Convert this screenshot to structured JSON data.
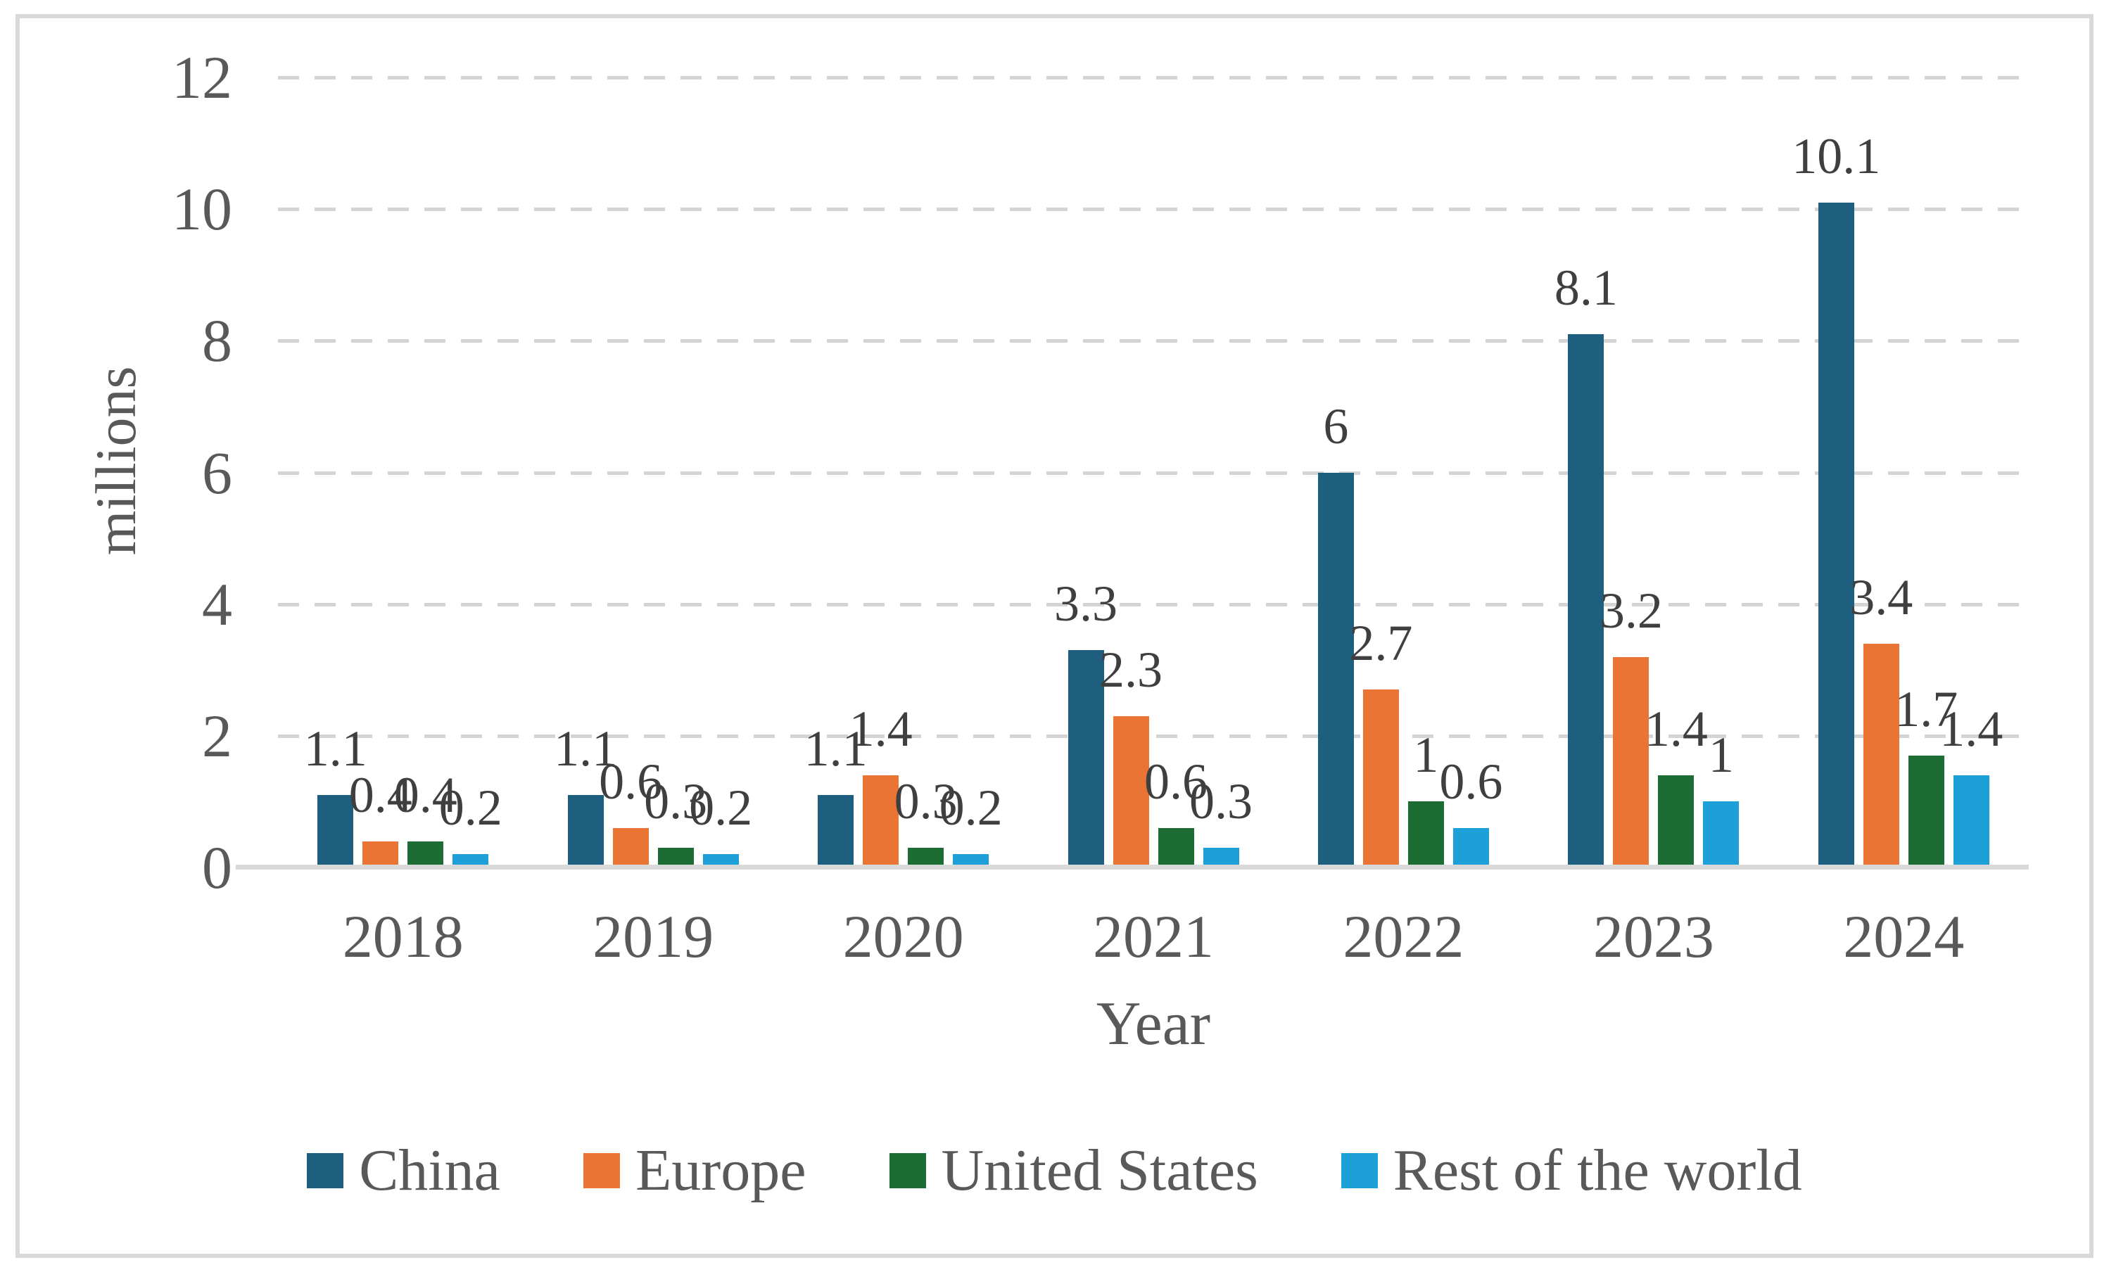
{
  "chart_data": {
    "type": "bar",
    "categories": [
      "2018",
      "2019",
      "2020",
      "2021",
      "2022",
      "2023",
      "2024"
    ],
    "series": [
      {
        "name": "China",
        "color": "#1e5f80",
        "values": [
          1.1,
          1.1,
          1.1,
          3.3,
          6,
          8.1,
          10.1
        ]
      },
      {
        "name": "Europe",
        "color": "#ea7434",
        "values": [
          0.4,
          0.6,
          1.4,
          2.3,
          2.7,
          3.2,
          3.4
        ]
      },
      {
        "name": "United States",
        "color": "#1d6c34",
        "values": [
          0.4,
          0.3,
          0.3,
          0.6,
          1,
          1.4,
          1.7
        ]
      },
      {
        "name": "Rest of the world",
        "color": "#1d9fd8",
        "values": [
          0.2,
          0.2,
          0.2,
          0.3,
          0.6,
          1,
          1.4
        ]
      }
    ],
    "title": "",
    "xlabel": "Year",
    "ylabel": "millions",
    "ylim": [
      0,
      12
    ],
    "yticks": [
      0,
      2,
      4,
      6,
      8,
      10,
      12
    ],
    "grid": "dashed horizontal",
    "legend_position": "bottom",
    "data_labels": "above bars",
    "colors": {
      "gridline": "#d4d4d4",
      "axis_line": "#d9d9d9",
      "frame_border": "#d9d9d9",
      "tick_text": "#595959",
      "data_label_text": "#3f3f3f"
    }
  }
}
